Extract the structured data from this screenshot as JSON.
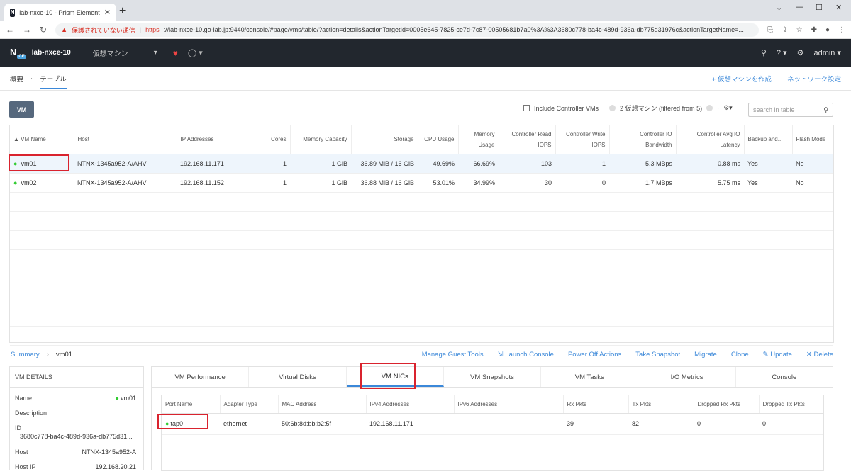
{
  "browser": {
    "tab_title": "lab-nxce-10 - Prism Element",
    "security_warning": "保護されていない通信",
    "url_scheme": "https",
    "url_rest": "://lab-nxce-10.go-lab.jp:9440/console/#page/vms/table/?action=details&actionTargetId=0005e645-7825-ce7d-7c87-00505681b7a0%3A%3A3680c778-ba4c-489d-936a-db775d31976c&actionTargetName=..."
  },
  "app": {
    "cluster_name": "lab-nxce-10",
    "menu_label": "仮想マシン",
    "user": "admin"
  },
  "subnav": {
    "overview": "概要",
    "table": "テーブル",
    "create_vm": "+ 仮想マシンを作成",
    "network_config": "ネットワーク設定"
  },
  "toolbar": {
    "vm_button": "VM",
    "include_cvm": "Include Controller VMs",
    "count_text": "2 仮想マシン (filtered from 5)",
    "search_placeholder": "search in table"
  },
  "vm_table": {
    "headers": [
      "VM Name",
      "Host",
      "IP Addresses",
      "Cores",
      "Memory Capacity",
      "Storage",
      "CPU Usage",
      "Memory Usage",
      "Controller Read IOPS",
      "Controller Write IOPS",
      "Controller IO Bandwidth",
      "Controller Avg IO Latency",
      "Backup and...",
      "Flash Mode"
    ],
    "rows": [
      [
        "vm01",
        "NTNX-1345a952-A/AHV",
        "192.168.11.171",
        "1",
        "1 GiB",
        "36.89 MiB / 16 GiB",
        "49.69%",
        "66.69%",
        "103",
        "1",
        "5.3 MBps",
        "0.88 ms",
        "Yes",
        "No"
      ],
      [
        "vm02",
        "NTNX-1345a952-A/AHV",
        "192.168.11.152",
        "1",
        "1 GiB",
        "36.88 MiB / 16 GiB",
        "53.01%",
        "34.99%",
        "30",
        "0",
        "1.7 MBps",
        "5.75 ms",
        "Yes",
        "No"
      ]
    ]
  },
  "summary": {
    "label": "Summary",
    "vm": "vm01",
    "actions": [
      "Manage Guest Tools",
      "Launch Console",
      "Power Off Actions",
      "Take Snapshot",
      "Migrate",
      "Clone",
      "Update",
      "Delete"
    ]
  },
  "vm_details": {
    "title": "VM DETAILS",
    "name_label": "Name",
    "name_value": "vm01",
    "description_label": "Description",
    "id_label": "ID",
    "id_value": "3680c778-ba4c-489d-936a-db775d31...",
    "host_label": "Host",
    "host_value": "NTNX-1345a952-A",
    "hostip_label": "Host IP",
    "hostip_value": "192.168.20.21"
  },
  "detail_tabs": [
    "VM Performance",
    "Virtual Disks",
    "VM NICs",
    "VM Snapshots",
    "VM Tasks",
    "I/O Metrics",
    "Console"
  ],
  "nic_table": {
    "headers": [
      "Port Name",
      "Adapter Type",
      "MAC Address",
      "IPv4 Addresses",
      "IPv6 Addresses",
      "Rx Pkts",
      "Tx Pkts",
      "Dropped Rx Pkts",
      "Dropped Tx Pkts"
    ],
    "row": [
      "tap0",
      "ethernet",
      "50:6b:8d:bb:b2:5f",
      "192.168.11.171",
      "",
      "39",
      "82",
      "0",
      "0"
    ]
  }
}
